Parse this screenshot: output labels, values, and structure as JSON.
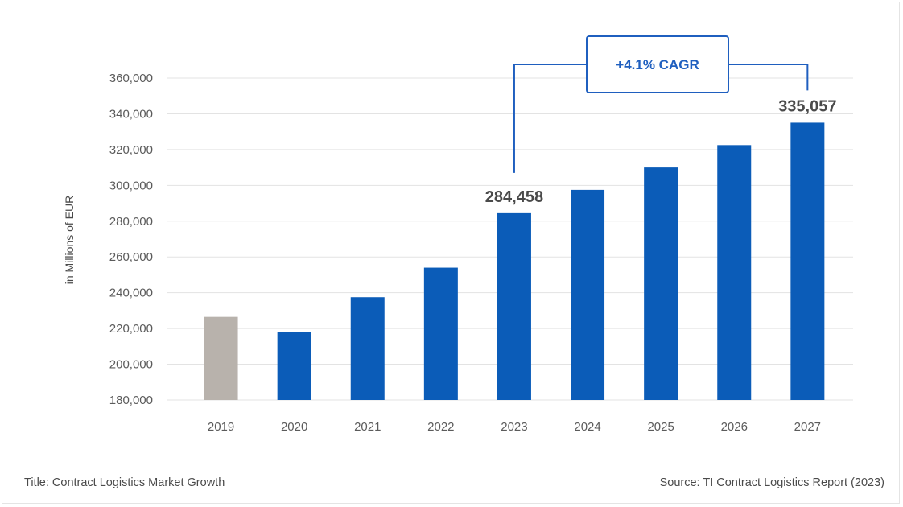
{
  "chart_data": {
    "type": "bar",
    "categories": [
      "2019",
      "2020",
      "2021",
      "2022",
      "2023",
      "2024",
      "2025",
      "2026",
      "2027"
    ],
    "values": [
      226500,
      218000,
      237500,
      254000,
      284458,
      297500,
      310000,
      322500,
      335057
    ],
    "ylim": [
      180000,
      360000
    ],
    "yticks": [
      180000,
      200000,
      220000,
      240000,
      260000,
      280000,
      300000,
      320000,
      340000,
      360000
    ],
    "ylabel": "in Millions of EUR",
    "xlabel": "",
    "grid": true,
    "colors": {
      "historic": "#b8b2ac",
      "main": "#0b5cb8",
      "annotation": "#1f5fbf",
      "grid": "#e3e3e3"
    },
    "highlight_bar_color_index": 0,
    "data_labels": [
      {
        "category": "2023",
        "text": "284,458"
      },
      {
        "category": "2027",
        "text": "335,057"
      }
    ],
    "annotation": {
      "text": "+4.1% CAGR",
      "from": "2023",
      "to": "2027"
    }
  },
  "footer": {
    "title": "Title: Contract Logistics Market Growth",
    "source": "Source: TI Contract Logistics Report (2023)"
  }
}
